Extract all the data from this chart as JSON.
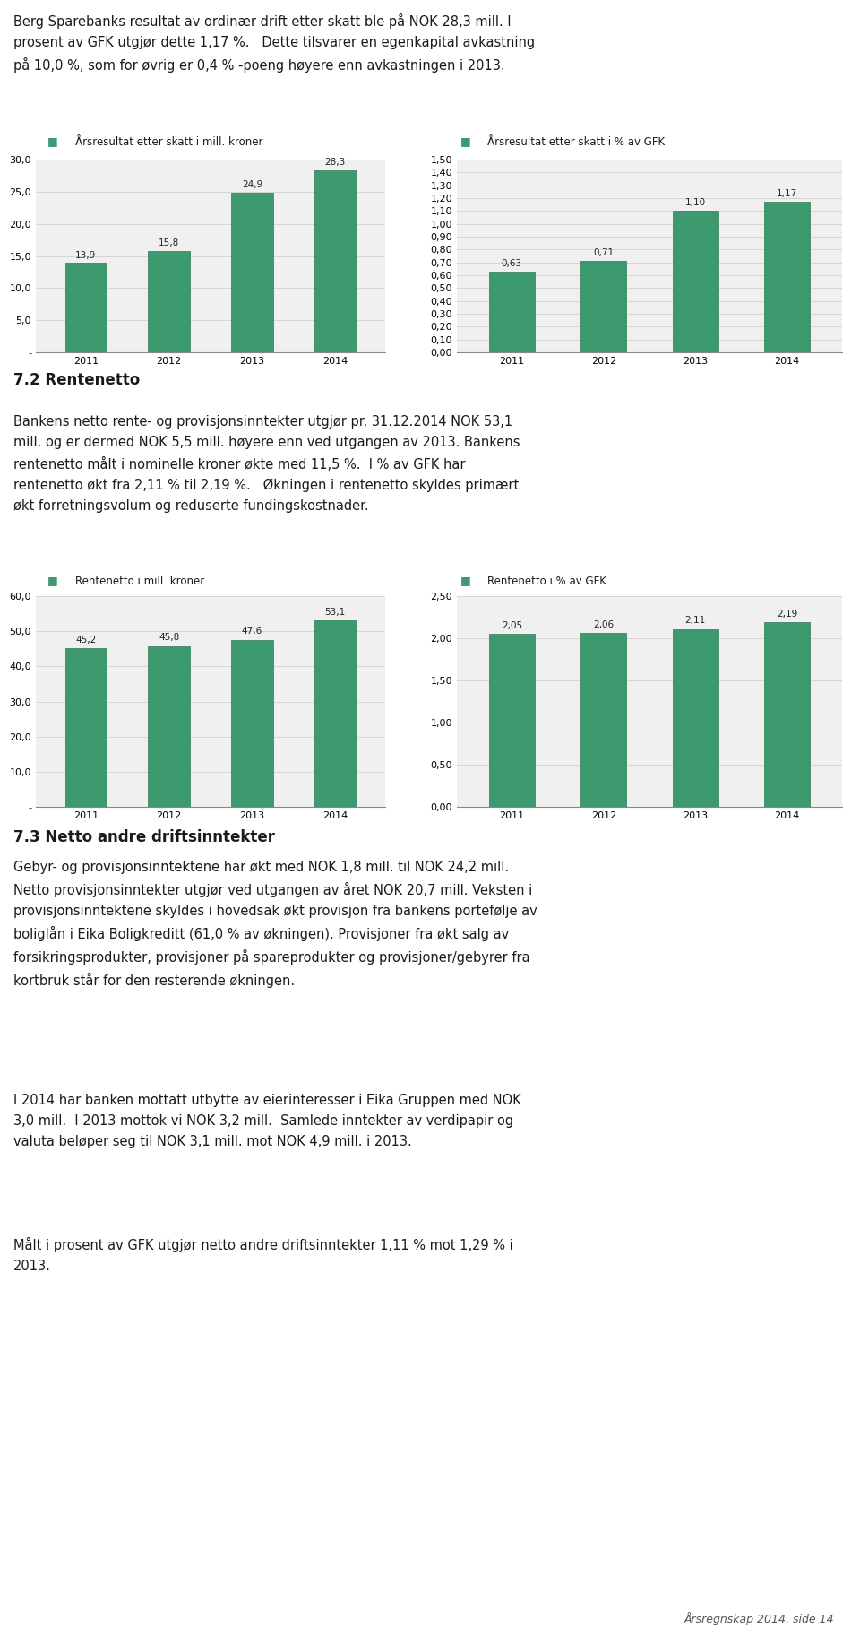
{
  "page_text_top_lines": [
    "Berg Sparebanks resultat av ordinær drift etter skatt ble på NOK 28,3 mill. I",
    "prosent av GFK utgjør dette 1,17 %.   Dette tilsvarer en egenkapital avkastning",
    "på 10,0 %, som for øvrig er 0,4 % -poeng høyere enn avkastningen i 2013."
  ],
  "chart1_title": "Årsresultat etter skatt i mill. kroner",
  "chart1_years": [
    "2011",
    "2012",
    "2013",
    "2014"
  ],
  "chart1_values": [
    13.9,
    15.8,
    24.9,
    28.3
  ],
  "chart1_ylim": [
    0,
    30.0
  ],
  "chart1_yticks": [
    0,
    5.0,
    10.0,
    15.0,
    20.0,
    25.0,
    30.0
  ],
  "chart1_ytick_labels": [
    "-",
    "5,0",
    "10,0",
    "15,0",
    "20,0",
    "25,0",
    "30,0"
  ],
  "chart2_title": "Årsresultat etter skatt i % av GFK",
  "chart2_years": [
    "2011",
    "2012",
    "2013",
    "2014"
  ],
  "chart2_values": [
    0.63,
    0.71,
    1.1,
    1.17
  ],
  "chart2_ylim": [
    0,
    1.5
  ],
  "chart2_yticks": [
    0.0,
    0.1,
    0.2,
    0.3,
    0.4,
    0.5,
    0.6,
    0.7,
    0.8,
    0.9,
    1.0,
    1.1,
    1.2,
    1.3,
    1.4,
    1.5
  ],
  "chart2_ytick_labels": [
    "0,00",
    "0,10",
    "0,20",
    "0,30",
    "0,40",
    "0,50",
    "0,60",
    "0,70",
    "0,80",
    "0,90",
    "1,00",
    "1,10",
    "1,20",
    "1,30",
    "1,40",
    "1,50"
  ],
  "section1_title": "7.2 Rentenetto",
  "section1_lines": [
    "Bankens netto rente- og provisjonsinntekter utgjør pr. 31.12.2014 NOK 53,1",
    "mill. og er dermed NOK 5,5 mill. høyere enn ved utgangen av 2013. Bankens",
    "rentenetto målt i nominelle kroner økte med 11,5 %.  I % av GFK har",
    "rentenetto økt fra 2,11 % til 2,19 %.   Økningen i rentenetto skyldes primært",
    "økt forretningsvolum og reduserte fundingskostnader."
  ],
  "chart3_title": "Rentenetto i mill. kroner",
  "chart3_years": [
    "2011",
    "2012",
    "2013",
    "2014"
  ],
  "chart3_values": [
    45.2,
    45.8,
    47.6,
    53.1
  ],
  "chart3_ylim": [
    0,
    60.0
  ],
  "chart3_yticks": [
    0,
    10.0,
    20.0,
    30.0,
    40.0,
    50.0,
    60.0
  ],
  "chart3_ytick_labels": [
    "-",
    "10,0",
    "20,0",
    "30,0",
    "40,0",
    "50,0",
    "60,0"
  ],
  "chart4_title": "Rentenetto i % av GFK",
  "chart4_years": [
    "2011",
    "2012",
    "2013",
    "2014"
  ],
  "chart4_values": [
    2.05,
    2.06,
    2.11,
    2.19
  ],
  "chart4_ylim": [
    0,
    2.5
  ],
  "chart4_yticks": [
    0.0,
    0.5,
    1.0,
    1.5,
    2.0,
    2.5
  ],
  "chart4_ytick_labels": [
    "0,00",
    "0,50",
    "1,00",
    "1,50",
    "2,00",
    "2,50"
  ],
  "section2_title": "7.3 Netto andre driftsinntekter",
  "section2_para1": [
    "Gebyr- og provisjonsinntektene har økt med NOK 1,8 mill. til NOK 24,2 mill.",
    "Netto provisjonsinntekter utgjør ved utgangen av året NOK 20,7 mill. Veksten i",
    "provisjonsinntektene skyldes i hovedsak økt provisjon fra bankens portefølje av",
    "boliglån i Eika Boligkreditt (61,0 % av økningen). Provisjoner fra økt salg av",
    "forsikringsprodukter, provisjoner på spareprodukter og provisjoner/gebyrer fra",
    "kortbruk står for den resterende økningen."
  ],
  "section2_para2": [
    "I 2014 har banken mottatt utbytte av eierinteresser i Eika Gruppen med NOK",
    "3,0 mill.  I 2013 mottok vi NOK 3,2 mill.  Samlede inntekter av verdipapir og",
    "valuta beløper seg til NOK 3,1 mill. mot NOK 4,9 mill. i 2013."
  ],
  "section2_para3": [
    "Målt i prosent av GFK utgjør netto andre driftsinntekter 1,11 % mot 1,29 % i",
    "2013."
  ],
  "footer": "Årsregnskap 2014, side 14",
  "bar_color": "#3d9970",
  "bar_edge_color": "#2e7a52",
  "bg_color": "#ffffff",
  "grid_color": "#d0d0d0",
  "text_color": "#1a1a1a",
  "chart_bg": "#f0f0f0"
}
